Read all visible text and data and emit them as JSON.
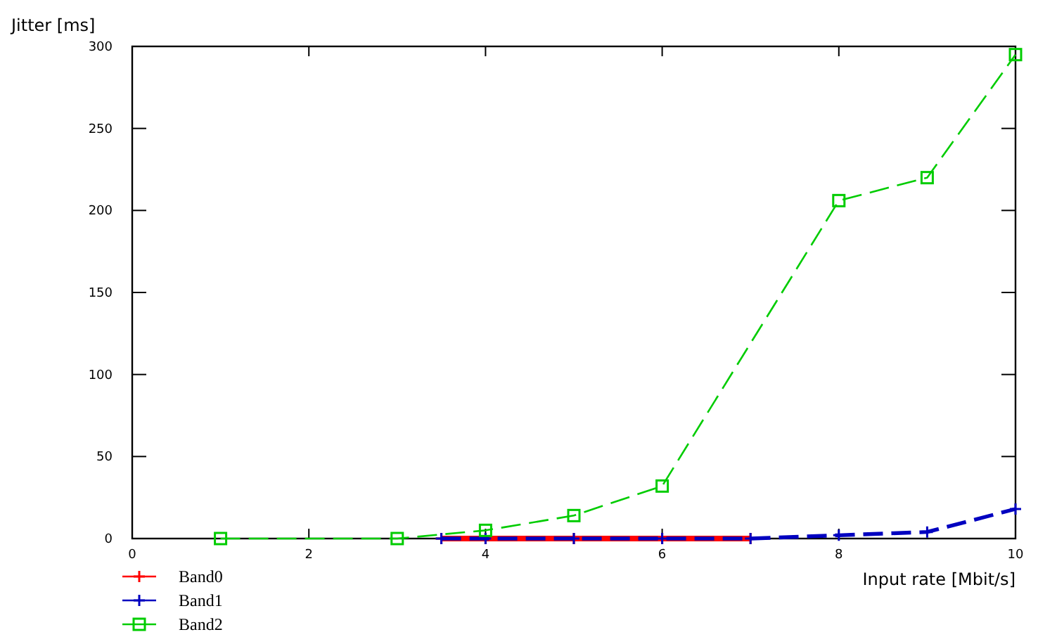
{
  "chart_data": {
    "type": "line",
    "xlabel": "Input rate [Mbit/s]",
    "ylabel": "Jitter [ms]",
    "xlim": [
      0,
      10
    ],
    "xticks": [
      0,
      2,
      4,
      6,
      8,
      10
    ],
    "ylim": [
      0,
      300
    ],
    "yticks": [
      0,
      50,
      100,
      150,
      200,
      250,
      300
    ],
    "grid": false,
    "legend": "bottom left",
    "series": [
      {
        "name": "Band0",
        "color": "#ff0000",
        "x": [
          3.5,
          4,
          5,
          6,
          7
        ],
        "values": [
          0,
          0,
          0,
          0,
          0
        ],
        "marker": "cross",
        "line_style": "solid"
      },
      {
        "name": "Band1",
        "color": "#0000c0",
        "x": [
          3.5,
          4,
          5,
          6,
          7,
          8,
          9,
          10
        ],
        "values": [
          0,
          0,
          0,
          0,
          0,
          2,
          4,
          18
        ],
        "marker": "cross",
        "line_style": "dashed"
      },
      {
        "name": "Band2",
        "color": "#00cc00",
        "x": [
          1,
          3,
          4,
          5,
          6,
          8,
          9,
          10
        ],
        "values": [
          0,
          0,
          5,
          14,
          32,
          206,
          220,
          295
        ],
        "marker": "square",
        "line_style": "dashed"
      }
    ]
  }
}
